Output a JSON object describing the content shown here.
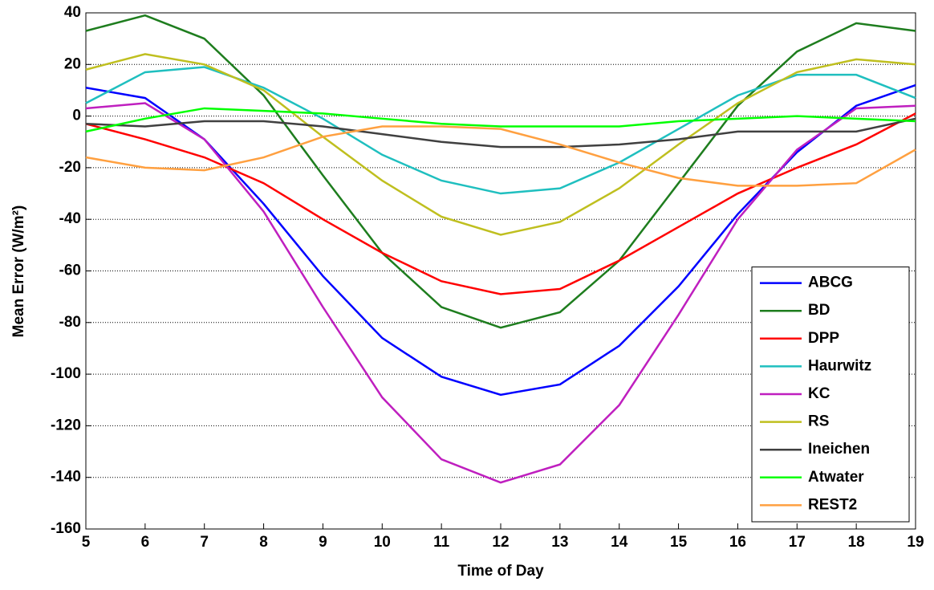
{
  "chart_data": {
    "type": "line",
    "xlabel": "Time of Day",
    "ylabel": "Mean Error (W/m²)",
    "x": [
      5,
      6,
      7,
      8,
      9,
      10,
      11,
      12,
      13,
      14,
      15,
      16,
      17,
      18,
      19
    ],
    "xlim": [
      5,
      19
    ],
    "xticks": [
      5,
      6,
      7,
      8,
      9,
      10,
      11,
      12,
      13,
      14,
      15,
      16,
      17,
      18,
      19
    ],
    "ylim": [
      -160,
      40
    ],
    "yticks": [
      -160,
      -140,
      -120,
      -100,
      -80,
      -60,
      -40,
      -20,
      0,
      20,
      40
    ],
    "grid": true,
    "legend": "lower right",
    "series": [
      {
        "name": "ABCG",
        "color": "#0000ff",
        "values": [
          11,
          7,
          -9,
          -34,
          -62,
          -86,
          -101,
          -108,
          -104,
          -89,
          -66,
          -38,
          -14,
          4,
          12
        ]
      },
      {
        "name": "BD",
        "color": "#1e7d1e",
        "values": [
          33,
          39,
          30,
          8,
          -23,
          -53,
          -74,
          -82,
          -76,
          -56,
          -26,
          4,
          25,
          36,
          33
        ]
      },
      {
        "name": "DPP",
        "color": "#ff0000",
        "values": [
          -3,
          -9,
          -16,
          -26,
          -40,
          -53,
          -64,
          -69,
          -67,
          -56,
          -43,
          -30,
          -20,
          -11,
          1
        ]
      },
      {
        "name": "Haurwitz",
        "color": "#1fbfbf",
        "values": [
          5,
          17,
          19,
          11,
          -1,
          -15,
          -25,
          -30,
          -28,
          -18,
          -5,
          8,
          16,
          16,
          7
        ]
      },
      {
        "name": "KC",
        "color": "#bf1fbf",
        "values": [
          3,
          5,
          -9,
          -37,
          -74,
          -109,
          -133,
          -142,
          -135,
          -112,
          -77,
          -40,
          -13,
          3,
          4
        ]
      },
      {
        "name": "RS",
        "color": "#bfbf1f",
        "values": [
          18,
          24,
          20,
          10,
          -8,
          -25,
          -39,
          -46,
          -41,
          -28,
          -11,
          5,
          17,
          22,
          20
        ]
      },
      {
        "name": "Ineichen",
        "color": "#404040",
        "values": [
          -3,
          -4,
          -2,
          -2,
          -4,
          -7,
          -10,
          -12,
          -12,
          -11,
          -9,
          -6,
          -6,
          -6,
          -1
        ]
      },
      {
        "name": "Atwater",
        "color": "#00ff00",
        "values": [
          -6,
          -1,
          3,
          2,
          1,
          -1,
          -3,
          -4,
          -4,
          -4,
          -2,
          -1,
          0,
          -1,
          -2
        ]
      },
      {
        "name": "REST2",
        "color": "#ffa040",
        "values": [
          -16,
          -20,
          -21,
          -16,
          -8,
          -4,
          -4,
          -5,
          -11,
          -18,
          -24,
          -27,
          -27,
          -26,
          -13
        ]
      }
    ]
  }
}
